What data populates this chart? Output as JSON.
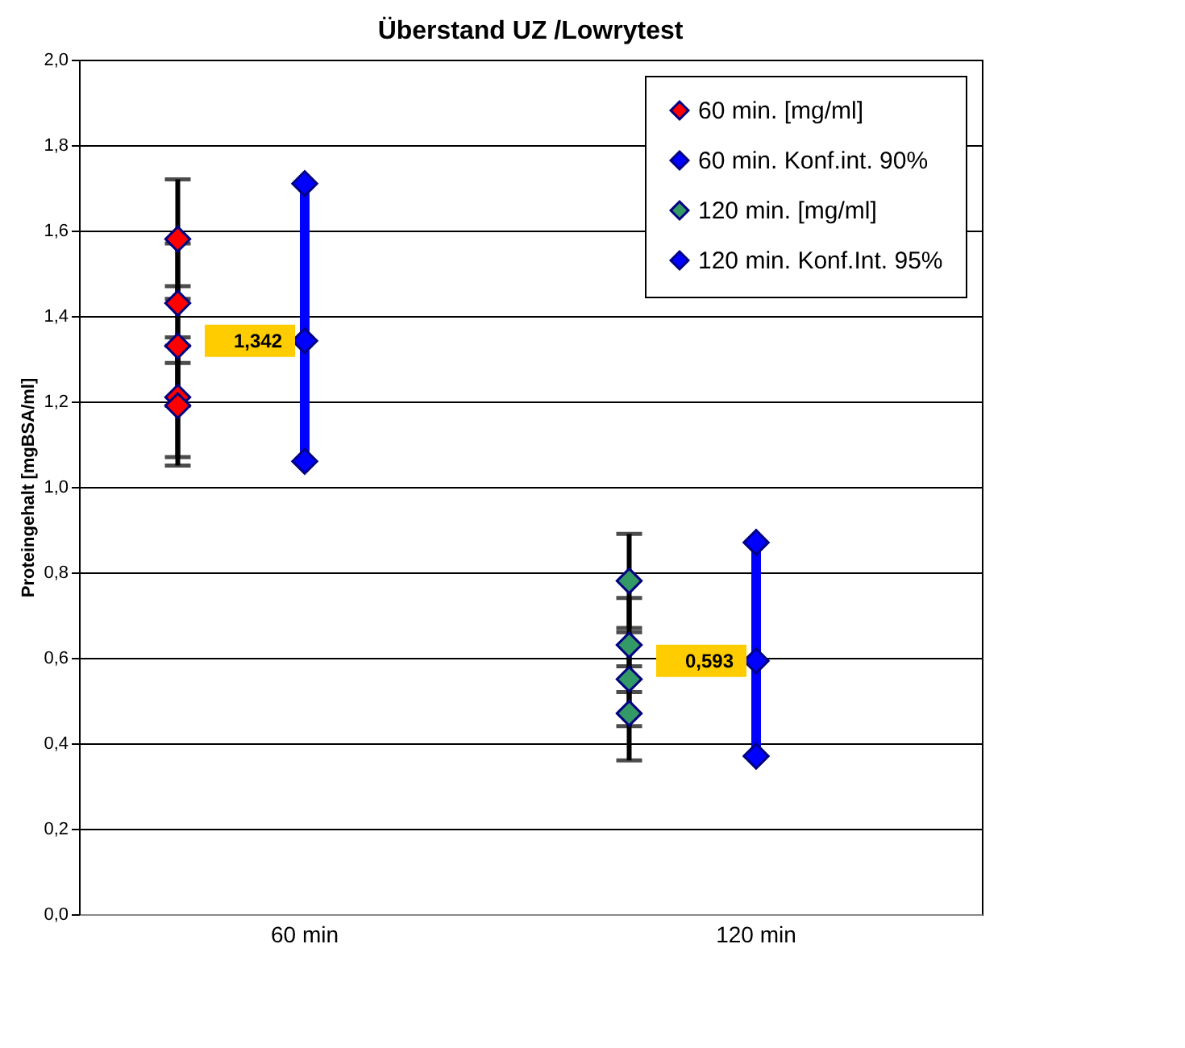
{
  "chart_data": {
    "type": "scatter",
    "title": "Überstand UZ /Lowrytest",
    "ylabel": "Proteingehalt [mgBSA/ml]",
    "categories": [
      "60 min",
      "120 min"
    ],
    "ylim": [
      0,
      2
    ],
    "yticks": [
      {
        "value": 0,
        "label": "0,0"
      },
      {
        "value": 0.2,
        "label": "0,2"
      },
      {
        "value": 0.4,
        "label": "0,4"
      },
      {
        "value": 0.6,
        "label": "0,6"
      },
      {
        "value": 0.8,
        "label": "0,8"
      },
      {
        "value": 1,
        "label": "1,0"
      },
      {
        "value": 1.2,
        "label": "1,2"
      },
      {
        "value": 1.4,
        "label": "1,4"
      },
      {
        "value": 1.6,
        "label": "1,6"
      },
      {
        "value": 1.8,
        "label": "1,8"
      },
      {
        "value": 2,
        "label": "2,0"
      }
    ],
    "grid": "y",
    "legend": "top right",
    "marker": "diamond",
    "series": [
      {
        "name": "60 min. [mg/ml]",
        "color": "#ff0000",
        "x": [
          "60 min",
          "60 min",
          "60 min",
          "60 min",
          "60 min"
        ],
        "values": [
          1.58,
          1.43,
          1.33,
          1.21,
          1.19
        ],
        "errors": [
          0.14,
          0.14,
          0.14,
          0.14,
          0.14
        ]
      },
      {
        "name": "60 min. Konf.int. 90%",
        "type": "line",
        "color": "#0000ff",
        "x": [
          "60 min",
          "60 min",
          "60 min"
        ],
        "values": [
          1.71,
          1.342,
          1.06
        ],
        "value_labels": [
          null,
          "1,342",
          null
        ]
      },
      {
        "name": "120 min. [mg/ml]",
        "color": "#339966",
        "x": [
          "120 min",
          "120 min",
          "120 min",
          "120 min"
        ],
        "values": [
          0.78,
          0.63,
          0.55,
          0.47
        ],
        "errors": [
          0.11,
          0.11,
          0.11,
          0.11
        ]
      },
      {
        "name": "120 min. Konf.Int. 95%",
        "type": "line",
        "color": "#0000ff",
        "x": [
          "120 min",
          "120 min",
          "120 min"
        ],
        "values": [
          0.87,
          0.593,
          0.37
        ],
        "value_labels": [
          null,
          "0,593",
          null
        ]
      }
    ]
  }
}
